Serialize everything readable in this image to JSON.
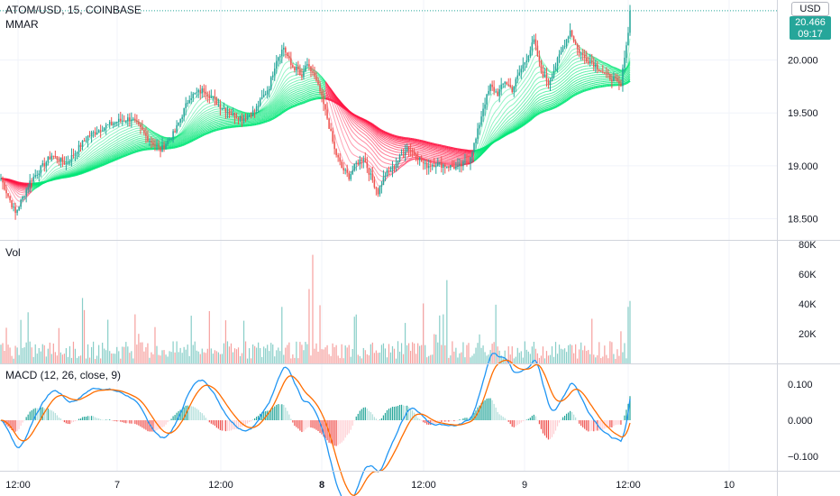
{
  "header": {
    "symbol_title": "ATOM/USD, 15, COINBASE",
    "indicator_label": "MMAR",
    "currency": "USD",
    "last_price": "20.466",
    "countdown": "09:17"
  },
  "colors": {
    "up": "#26a69a",
    "down": "#ef5350",
    "ribbon_up": "#00e676",
    "ribbon_down": "#ff1744",
    "macd_line": "#2196f3",
    "signal_line": "#ff6d00",
    "grid": "#f0f3fa"
  },
  "chart_data": [
    {
      "type": "candlestick",
      "title": "ATOM/USD, 15, COINBASE",
      "indicator": "MMAR",
      "ylim": [
        18.3,
        20.55
      ],
      "y_ticks": [
        "20.000",
        "19.500",
        "19.000",
        "18.500"
      ],
      "x_ticks": [
        "12:00",
        "7",
        "12:00",
        "8",
        "12:00",
        "9",
        "12:00",
        "10"
      ],
      "close_path": [
        [
          0,
          18.88
        ],
        [
          8,
          18.55
        ],
        [
          16,
          18.85
        ],
        [
          28,
          19.1
        ],
        [
          36,
          19.02
        ],
        [
          48,
          19.28
        ],
        [
          56,
          19.36
        ],
        [
          64,
          19.42
        ],
        [
          72,
          19.45
        ],
        [
          80,
          19.28
        ],
        [
          88,
          19.15
        ],
        [
          96,
          19.32
        ],
        [
          104,
          19.65
        ],
        [
          112,
          19.72
        ],
        [
          120,
          19.58
        ],
        [
          128,
          19.48
        ],
        [
          134,
          19.45
        ],
        [
          140,
          19.52
        ],
        [
          148,
          19.75
        ],
        [
          152,
          20.01
        ],
        [
          156,
          20.12
        ],
        [
          160,
          19.95
        ],
        [
          164,
          19.9
        ],
        [
          166,
          19.82
        ],
        [
          168,
          19.95
        ],
        [
          172,
          19.88
        ],
        [
          176,
          19.7
        ],
        [
          180,
          19.45
        ],
        [
          184,
          19.15
        ],
        [
          188,
          18.98
        ],
        [
          192,
          18.9
        ],
        [
          196,
          19.02
        ],
        [
          200,
          19.08
        ],
        [
          204,
          18.9
        ],
        [
          208,
          18.75
        ],
        [
          212,
          18.92
        ],
        [
          216,
          18.98
        ],
        [
          220,
          19.08
        ],
        [
          224,
          19.18
        ],
        [
          228,
          19.12
        ],
        [
          234,
          19.0
        ],
        [
          240,
          19.02
        ],
        [
          246,
          19.0
        ],
        [
          252,
          18.98
        ],
        [
          258,
          19.05
        ],
        [
          262,
          19.25
        ],
        [
          266,
          19.55
        ],
        [
          270,
          19.75
        ],
        [
          274,
          19.68
        ],
        [
          278,
          19.8
        ],
        [
          282,
          19.72
        ],
        [
          286,
          19.88
        ],
        [
          290,
          20.02
        ],
        [
          294,
          20.18
        ],
        [
          298,
          19.9
        ],
        [
          302,
          19.78
        ],
        [
          306,
          19.95
        ],
        [
          310,
          20.12
        ],
        [
          314,
          20.28
        ],
        [
          318,
          20.1
        ],
        [
          322,
          20.02
        ],
        [
          326,
          19.98
        ],
        [
          330,
          19.92
        ],
        [
          334,
          19.85
        ],
        [
          338,
          19.82
        ],
        [
          340,
          19.78
        ],
        [
          342,
          19.75
        ],
        [
          344,
          20.05
        ],
        [
          346,
          20.25
        ],
        [
          347,
          20.466
        ]
      ],
      "volume_ylim": [
        0,
        80000
      ],
      "volume_ticks": [
        "80K",
        "60K",
        "40K",
        "20K"
      ],
      "volume_label": "Vol",
      "macd": {
        "label": "MACD (12, 26, close, 9)",
        "ylim": [
          -0.14,
          0.155
        ],
        "y_ticks": [
          "0.100",
          "0.000",
          "−0.100"
        ]
      }
    }
  ]
}
